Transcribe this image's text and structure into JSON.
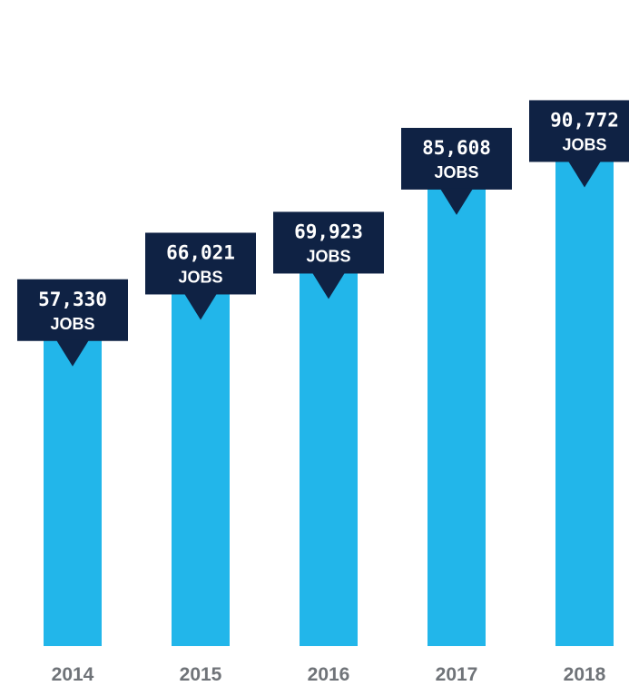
{
  "chart_data": {
    "type": "bar",
    "title": "",
    "xlabel": "",
    "ylabel": "",
    "categories": [
      "2014",
      "2015",
      "2016",
      "2017",
      "2018"
    ],
    "values": [
      57330,
      66021,
      69923,
      85608,
      90772
    ],
    "value_labels": [
      "57,330",
      "66,021",
      "69,923",
      "85,608",
      "90,772"
    ],
    "unit_label": "JOBS",
    "ylim": [
      0,
      100000
    ],
    "grid": false,
    "legend": "none",
    "colors": {
      "bar": "#22b6ea",
      "callout": "#0f2244",
      "callout_text": "#ffffff",
      "axis_label": "#6f7378"
    }
  }
}
